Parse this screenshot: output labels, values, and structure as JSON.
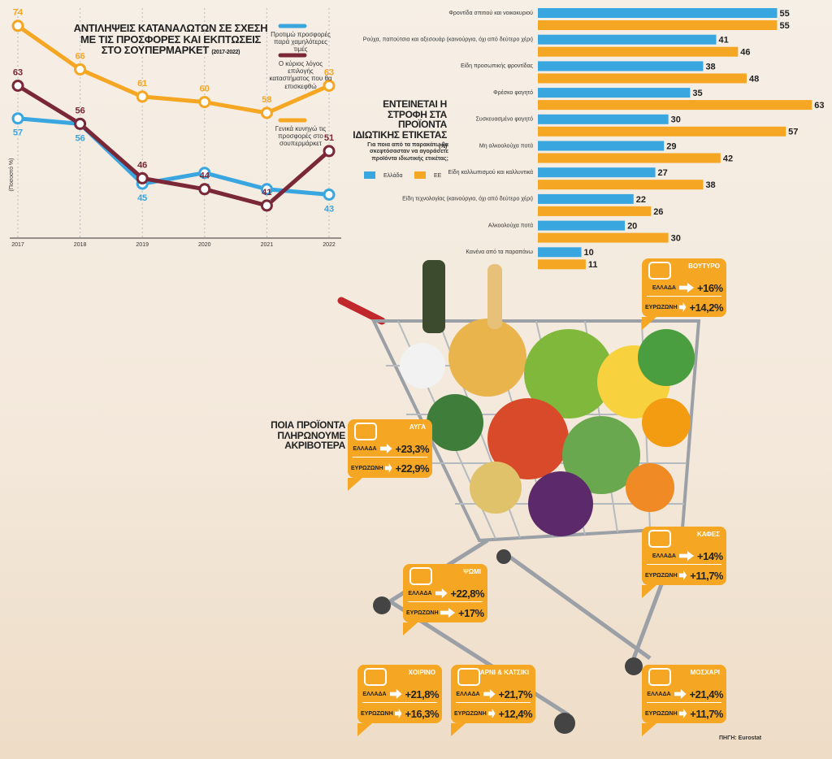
{
  "chart_data": [
    {
      "type": "line",
      "title": "ΑΝΤΙΛΗΨΕΙΣ ΚΑΤΑΝΑΛΩΤΩΝ ΣΕ ΣΧΕΣΗ ΜΕ ΤΙΣ ΠΡΟΣΦΟΡΕΣ ΚΑΙ ΕΚΠΤΩΣΕΙΣ ΣΤΟ ΣΟΥΠΕΡΜΑΡΚΕΤ",
      "subtitle": "(2017-2022)",
      "y_label": "(Ποσοστό %)",
      "categories": [
        "2017",
        "2018",
        "2019",
        "2020",
        "2021",
        "2022"
      ],
      "ylim": [
        38,
        78
      ],
      "series": [
        {
          "name": "Προτιμώ προσφορές παρά χαμηλότερες τιμές",
          "color": "#3aa6e0",
          "values": [
            57,
            56,
            45,
            47,
            44,
            43
          ]
        },
        {
          "name": "Ο κύριος λόγος επιλογής καταστήματος που θα επισκεφθώ",
          "color": "#7a2737",
          "values": [
            63,
            56,
            46,
            44,
            41,
            51
          ]
        },
        {
          "name": "Γενικά κυνηγώ τις προσφορές στο σουπερμάρκετ",
          "color": "#f5a623",
          "values": [
            74,
            66,
            61,
            60,
            58,
            63
          ]
        }
      ]
    },
    {
      "type": "hbar",
      "title": "ΕΝΤΕΙΝΕΤΑΙ Η ΣΤΡΟΦΗ ΣΤΑ ΠΡΟΪΟΝΤΑ ΙΔΙΩΤΙΚΗΣ ΕΤΙΚΕΤΑΣ",
      "title_unit": "(%)",
      "subtitle": "Για ποια από τα παρακάτω θα σκεφτόσασταν να αγοράσετε προϊόντα ιδιωτικής ετικέτας;",
      "categories": [
        "Φροντίδα σπιτιού και νοικοκυριού",
        "Ρούχα, παπούτσια και αξεσουάρ (καινούργια, όχι από δεύτερο χέρι)",
        "Είδη προσωπικής φροντίδας",
        "Φρέσκο φαγητό",
        "Συσκευασμένο φαγητό",
        "Μη αλκοολούχα ποτά",
        "Είδη καλλωπισμού και καλλυντικά",
        "Είδη τεχνολογίας (καινούργια, όχι από δεύτερο χέρι)",
        "Αλκοολούχα ποτά",
        "Κανένα από τα παραπάνω"
      ],
      "xlim": [
        0,
        65
      ],
      "series": [
        {
          "name": "Ελλάδα",
          "color": "#3aa6e0",
          "values": [
            55,
            41,
            38,
            35,
            30,
            29,
            27,
            22,
            20,
            10
          ]
        },
        {
          "name": "ΕΕ",
          "color": "#f5a623",
          "values": [
            55,
            46,
            48,
            63,
            57,
            42,
            38,
            26,
            30,
            11
          ]
        }
      ]
    }
  ],
  "price_section": {
    "title": "ΠΟΙΑ ΠΡΟΪΟΝΤΑ ΠΛΗΡΩΝΟΥΜΕ ΑΚΡΙΒΟΤΕΡΑ",
    "row_labels": [
      "ΕΛΛΑΔΑ",
      "ΕΥΡΩΖΩΝΗ"
    ],
    "items": [
      {
        "name": "ΒΟΥΤΥΡΟ",
        "values": [
          "+16%",
          "+14,2%"
        ]
      },
      {
        "name": "ΑΥΓΑ",
        "values": [
          "+23,3%",
          "+22,9%"
        ]
      },
      {
        "name": "ΚΑΦΕΣ",
        "values": [
          "+14%",
          "+11,7%"
        ]
      },
      {
        "name": "ΨΩΜΙ",
        "values": [
          "+22,8%",
          "+17%"
        ]
      },
      {
        "name": "ΧΟΙΡΙΝΟ",
        "values": [
          "+21,8%",
          "+16,3%"
        ]
      },
      {
        "name": "ΑΡΝΙ & ΚΑΤΣΙΚΙ",
        "values": [
          "+21,7%",
          "+12,4%"
        ]
      },
      {
        "name": "ΜΟΣΧΑΡΙ",
        "values": [
          "+21,4%",
          "+11,7%"
        ]
      }
    ]
  },
  "source": "ΠΗΓΗ: Eurostat"
}
